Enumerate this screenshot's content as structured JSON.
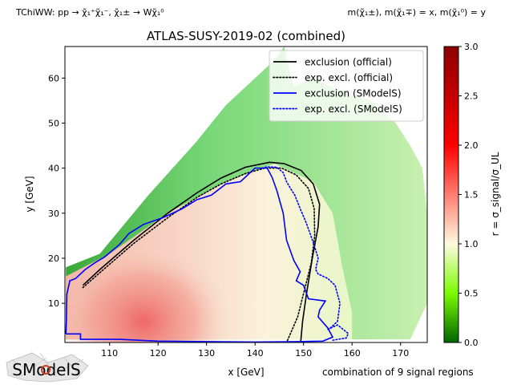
{
  "header": {
    "process": "TChiWW: pp → χ̃₁⁺χ̃₁⁻, χ̃₁± → Wχ̃₁⁰",
    "mass_relation": "m(χ̃₁±), m(χ̃₁∓) = x, m(χ̃₁⁰) = y"
  },
  "footer": {
    "note": "combination of 9 signal regions",
    "logo_text": "SModelS"
  },
  "chart_data": {
    "type": "heatmap",
    "title": "ATLAS-SUSY-2019-02 (combined)",
    "xlabel": "x [GeV]",
    "ylabel": "y [GeV]",
    "xlim": [
      100.8,
      175.5
    ],
    "ylim": [
      1.3,
      67
    ],
    "xticks": [
      110,
      120,
      130,
      140,
      150,
      160,
      170
    ],
    "yticks": [
      10,
      20,
      30,
      40,
      50,
      60
    ],
    "grid": false,
    "legend_position": "top-right",
    "colorbar": {
      "label": "r = σ_signal/σ_UL",
      "range": [
        0,
        3
      ],
      "ticks": [
        0.0,
        0.5,
        1.0,
        1.5,
        2.0,
        2.5,
        3.0
      ],
      "colors": [
        "#006400",
        "#7cfc00",
        "#fffae0",
        "#ff0000",
        "#8b0000"
      ]
    },
    "series": [
      {
        "name": "exclusion (official)",
        "color": "#000000",
        "style": "solid",
        "points": [
          [
            104.5,
            14
          ],
          [
            108,
            17.5
          ],
          [
            115,
            24
          ],
          [
            122,
            30
          ],
          [
            128,
            34.5
          ],
          [
            133,
            37.8
          ],
          [
            138,
            40.2
          ],
          [
            143,
            41.3
          ],
          [
            146,
            41
          ],
          [
            149.5,
            39.5
          ],
          [
            152,
            36.5
          ],
          [
            153.3,
            32
          ],
          [
            153,
            27
          ],
          [
            151.8,
            20
          ],
          [
            150.6,
            12
          ],
          [
            149.8,
            6
          ],
          [
            149.4,
            1.3
          ]
        ]
      },
      {
        "name": "exp. excl. (official)",
        "color": "#000000",
        "style": "dotted",
        "points": [
          [
            104.5,
            13.5
          ],
          [
            108,
            16.8
          ],
          [
            115,
            23.3
          ],
          [
            122,
            29
          ],
          [
            128,
            33.5
          ],
          [
            133,
            36.5
          ],
          [
            138,
            38.8
          ],
          [
            142,
            40
          ],
          [
            145.5,
            40
          ],
          [
            148.5,
            38.5
          ],
          [
            151,
            35.5
          ],
          [
            152.2,
            31
          ],
          [
            152.3,
            25
          ],
          [
            151.6,
            19
          ],
          [
            150.2,
            13
          ],
          [
            148.8,
            7
          ],
          [
            146.5,
            1.3
          ]
        ]
      },
      {
        "name": "exclusion (SModelS)",
        "color": "#0000ff",
        "style": "solid",
        "points": [
          [
            101,
            3.2
          ],
          [
            104,
            3.2
          ],
          [
            104,
            2
          ],
          [
            112,
            2
          ],
          [
            120,
            1.6
          ],
          [
            130,
            1.5
          ],
          [
            140,
            1.4
          ],
          [
            149,
            1.5
          ],
          [
            154,
            1.6
          ],
          [
            156,
            2.5
          ],
          [
            155,
            4.5
          ],
          [
            153,
            7
          ],
          [
            153.3,
            8.5
          ],
          [
            154.5,
            10.5
          ],
          [
            151,
            11
          ],
          [
            150,
            14
          ],
          [
            148.5,
            15
          ],
          [
            149.3,
            17
          ],
          [
            148,
            19.5
          ],
          [
            146.5,
            24
          ],
          [
            145.8,
            30
          ],
          [
            144.5,
            35
          ],
          [
            143.5,
            38
          ],
          [
            142.5,
            40
          ],
          [
            140,
            40
          ],
          [
            137,
            37
          ],
          [
            134,
            36.5
          ],
          [
            131,
            34
          ],
          [
            128,
            33
          ],
          [
            125,
            31
          ],
          [
            121,
            29
          ],
          [
            117,
            27.5
          ],
          [
            114,
            25.5
          ],
          [
            112,
            23
          ],
          [
            109,
            20.3
          ],
          [
            107,
            19
          ],
          [
            105,
            17.5
          ],
          [
            103,
            15.5
          ],
          [
            101.8,
            15
          ],
          [
            101.2,
            12
          ],
          [
            101.1,
            6
          ],
          [
            101,
            3.2
          ]
        ]
      },
      {
        "name": "exp. excl. (SModelS)",
        "color": "#0000ff",
        "style": "dotted",
        "points": [
          [
            155,
            4.2
          ],
          [
            157,
            5.2
          ],
          [
            159.2,
            3.3
          ],
          [
            158.8,
            2.3
          ],
          [
            156,
            1.8
          ]
        ]
      },
      {
        "name": "exp. excl. (SModelS)",
        "color": "#0000ff",
        "style": "dotted",
        "points": [
          [
            155.5,
            4.5
          ],
          [
            157,
            6
          ],
          [
            157.5,
            10
          ],
          [
            156.5,
            14
          ],
          [
            155,
            15.5
          ],
          [
            153,
            16.5
          ],
          [
            152.5,
            17.5
          ],
          [
            153,
            20
          ],
          [
            152.3,
            22.5
          ],
          [
            151.5,
            25
          ],
          [
            150.5,
            28
          ],
          [
            149.3,
            31
          ],
          [
            148.2,
            34
          ],
          [
            147.3,
            35.5
          ],
          [
            146.5,
            37
          ],
          [
            145.8,
            39
          ],
          [
            144.5,
            40.2
          ],
          [
            142.5,
            40.3
          ],
          [
            141.5,
            40
          ]
        ]
      }
    ]
  }
}
